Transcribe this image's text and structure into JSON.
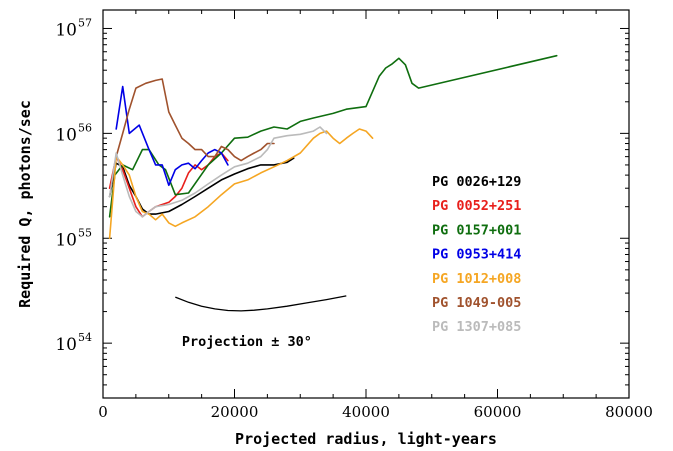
{
  "chart_data": {
    "type": "line",
    "title": "",
    "xlabel": "Projected radius, light-years",
    "ylabel": "Required Q, photons/sec",
    "xlim": [
      0,
      80000
    ],
    "ylim": [
      3e+53,
      1.5e+57
    ],
    "yscale": "log",
    "x_ticks": [
      {
        "value": 0,
        "label": "0"
      },
      {
        "value": 20000,
        "label": "20000"
      },
      {
        "value": 40000,
        "label": "40000"
      },
      {
        "value": 60000,
        "label": "60000"
      },
      {
        "value": 80000,
        "label": "80000"
      }
    ],
    "y_ticks": [
      {
        "exp": 54,
        "base": "10",
        "power": "54"
      },
      {
        "exp": 55,
        "base": "10",
        "power": "55"
      },
      {
        "exp": 56,
        "base": "10",
        "power": "56"
      },
      {
        "exp": 57,
        "base": "10",
        "power": "57"
      }
    ],
    "legend_position": "right",
    "grid": false,
    "series": [
      {
        "name": "PG 0026+129",
        "color": "#000000",
        "x": [
          1000,
          2000,
          3000,
          4000,
          5000,
          6000,
          7000,
          8000,
          10000,
          12000,
          14000,
          16000,
          18000,
          20000,
          22000,
          24000,
          26000,
          28000,
          29000
        ],
        "y": [
          2.5e+55,
          5.2e+55,
          4.8e+55,
          3.2e+55,
          2.5e+55,
          1.9e+55,
          1.7e+55,
          1.7e+55,
          1.8e+55,
          2.1e+55,
          2.5e+55,
          3e+55,
          3.6e+55,
          4.1e+55,
          4.6e+55,
          5e+55,
          5e+55,
          5.3e+55,
          5.8e+55
        ]
      },
      {
        "name": "PG 0052+251",
        "color": "#e8201c",
        "x": [
          1000,
          2000,
          3000,
          4000,
          5000,
          6000,
          7000,
          8000,
          9000,
          10000,
          11000,
          12000,
          13000,
          14000,
          15000,
          16000,
          17000,
          18000,
          19000
        ],
        "y": [
          3e+55,
          6e+55,
          4.5e+55,
          3e+55,
          2e+55,
          1.6e+55,
          1.8e+55,
          2e+55,
          2.1e+55,
          2.2e+55,
          2.5e+55,
          3e+55,
          4.2e+55,
          5e+55,
          4.5e+55,
          5e+55,
          6e+55,
          6.5e+55,
          5.5e+55
        ]
      },
      {
        "name": "PG 0157+001",
        "color": "#0f6e0f",
        "x": [
          1000,
          1800,
          3000,
          4500,
          6000,
          7000,
          8500,
          9500,
          11000,
          13000,
          16000,
          18000,
          20000,
          22000,
          24000,
          26000,
          28000,
          30000,
          32000,
          35000,
          37000,
          40000,
          42000,
          43000,
          44000,
          45000,
          46000,
          47000,
          48000,
          69000
        ],
        "y": [
          1.6e+55,
          4e+55,
          5e+55,
          4.5e+55,
          7e+55,
          7e+55,
          5e+55,
          4.5e+55,
          2.6e+55,
          2.7e+55,
          5e+55,
          6.5e+55,
          9e+55,
          9.2e+55,
          1.05e+56,
          1.15e+56,
          1.1e+56,
          1.3e+56,
          1.4e+56,
          1.55e+56,
          1.7e+56,
          1.8e+56,
          3.5e+56,
          4.2e+56,
          4.6e+56,
          5.2e+56,
          4.5e+56,
          3e+56,
          2.7e+56,
          5.5e+56
        ]
      },
      {
        "name": "PG 0953+414",
        "color": "#0000e6",
        "x": [
          2000,
          3000,
          4000,
          5500,
          7000,
          8000,
          9000,
          10000,
          11000,
          12000,
          13000,
          14000,
          15000,
          16000,
          17000,
          18000,
          19000
        ],
        "y": [
          1.1e+56,
          2.8e+56,
          1e+56,
          1.2e+56,
          7e+55,
          5e+55,
          5e+55,
          3.2e+55,
          4.5e+55,
          5e+55,
          5.2e+55,
          4.6e+55,
          5.5e+55,
          6.5e+55,
          7e+55,
          6.5e+55,
          5e+55
        ]
      },
      {
        "name": "PG 1012+008",
        "color": "#f5a623",
        "x": [
          1000,
          2000,
          3000,
          4000,
          5000,
          6000,
          7000,
          8000,
          9000,
          10000,
          11000,
          12000,
          14000,
          16000,
          18000,
          20000,
          22000,
          24000,
          26000,
          28000,
          30000,
          32000,
          33000,
          34000,
          35000,
          36000,
          37000,
          38000,
          39000,
          40000,
          41000
        ],
        "y": [
          1e+55,
          6e+55,
          5e+55,
          4e+55,
          2.5e+55,
          1.8e+55,
          1.7e+55,
          1.5e+55,
          1.7e+55,
          1.4e+55,
          1.3e+55,
          1.4e+55,
          1.6e+55,
          2e+55,
          2.6e+55,
          3.3e+55,
          3.6e+55,
          4.2e+55,
          4.8e+55,
          5.5e+55,
          6.5e+55,
          9e+55,
          1e+56,
          1.05e+56,
          9e+55,
          8e+55,
          9e+55,
          1e+56,
          1.1e+56,
          1.05e+56,
          9e+55
        ]
      },
      {
        "name": "PG 1049-005",
        "color": "#a0522d",
        "x": [
          2000,
          3000,
          4000,
          5000,
          6500,
          8000,
          9000,
          10000,
          11000,
          12000,
          13000,
          14000,
          15000,
          16000,
          17000,
          18000,
          19000,
          20000,
          21000,
          22000,
          23000,
          24000,
          25000,
          26000
        ],
        "y": [
          6e+55,
          1e+56,
          1.7e+56,
          2.7e+56,
          3e+56,
          3.2e+56,
          3.3e+56,
          1.6e+56,
          1.2e+56,
          9e+55,
          8e+55,
          7e+55,
          7e+55,
          6e+55,
          6e+55,
          7.5e+55,
          7e+55,
          6e+55,
          5.5e+55,
          6e+55,
          6.5e+55,
          7e+55,
          8e+55,
          8e+55
        ]
      },
      {
        "name": "PG 1307+085",
        "color": "#bbbbbb",
        "x": [
          1000,
          2000,
          3000,
          4000,
          5000,
          6000,
          7000,
          8000,
          10000,
          12000,
          14000,
          16000,
          18000,
          20000,
          22000,
          24000,
          25000,
          26000,
          28000,
          30000,
          32000,
          33000,
          34000
        ],
        "y": [
          2.5e+55,
          6.5e+55,
          4e+55,
          2.5e+55,
          1.8e+55,
          1.6e+55,
          1.8e+55,
          2e+55,
          2.1e+55,
          2.3e+55,
          2.7e+55,
          3.3e+55,
          4e+55,
          4.8e+55,
          5.2e+55,
          6e+55,
          7e+55,
          9e+55,
          9.5e+55,
          9.8e+55,
          1.05e+56,
          1.15e+56,
          1e+56
        ]
      }
    ],
    "annotations": [
      {
        "kind": "curve",
        "label": "Projection ± 30°",
        "x": [
          11000,
          13000,
          15000,
          17000,
          19000,
          21000,
          23000,
          25000,
          28000,
          31000,
          34000,
          37000
        ],
        "y": [
          2.75e+54,
          2.45e+54,
          2.25e+54,
          2.12e+54,
          2.05e+54,
          2.03e+54,
          2.06e+54,
          2.12e+54,
          2.25e+54,
          2.42e+54,
          2.6e+54,
          2.82e+54
        ]
      }
    ]
  }
}
